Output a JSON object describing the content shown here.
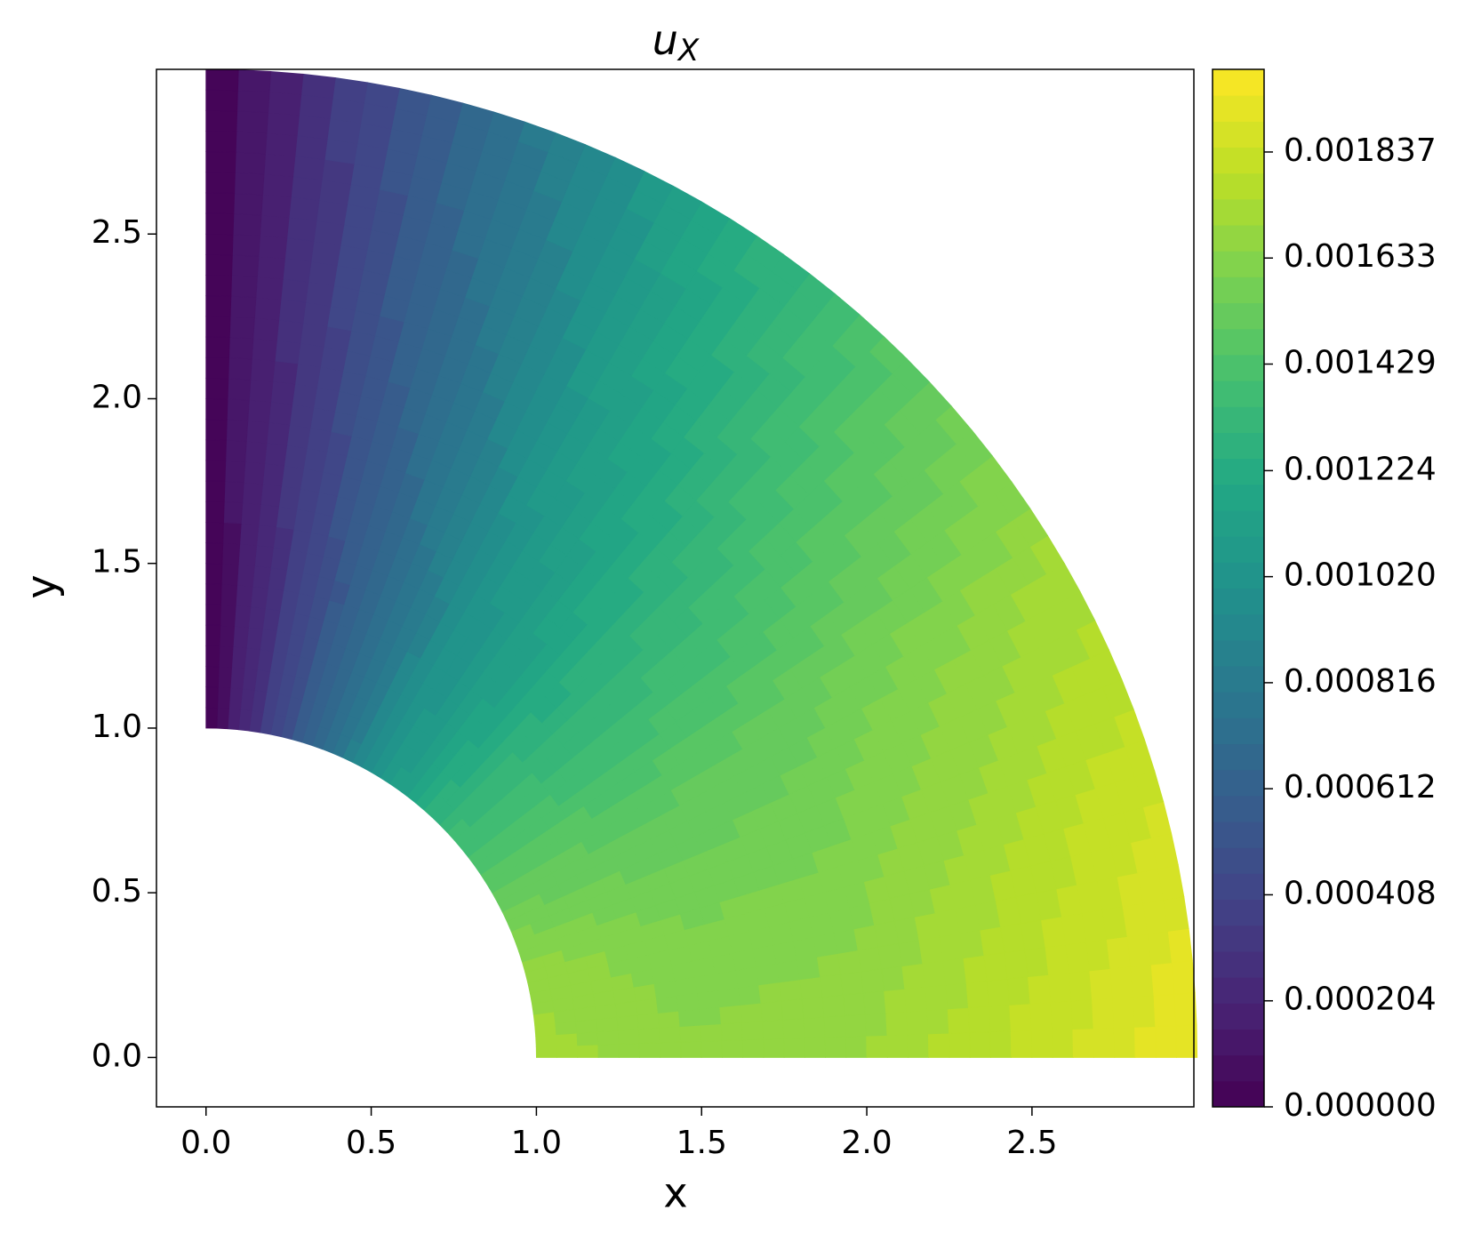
{
  "chart_data": {
    "type": "contour",
    "title": [
      "u",
      "X"
    ],
    "x_label": "x",
    "y_label": "y",
    "xlim": [
      -0.15,
      2.99
    ],
    "ylim": [
      -0.15,
      3.0
    ],
    "xticks": [
      {
        "value": 0,
        "label": "0.0"
      },
      0.5,
      {
        "value": 1,
        "label": "1.0"
      },
      1.5,
      {
        "value": 2,
        "label": "2.0"
      },
      2.5
    ],
    "yticks": [
      {
        "value": 0,
        "label": "0.0"
      },
      0.5,
      {
        "value": 1,
        "label": "1.0"
      },
      1.5,
      {
        "value": 2,
        "label": "2.0"
      },
      2.5
    ],
    "colormap": "viridis",
    "levels": 40,
    "clim": [
      0,
      0.001996
    ],
    "cticks": [
      {
        "value": 0,
        "label": "0.000000"
      },
      {
        "value": 0.000204,
        "label": "0.000204"
      },
      {
        "value": 0.000408,
        "label": "0.000408"
      },
      {
        "value": 0.000612,
        "label": "0.000612"
      },
      {
        "value": 0.000816,
        "label": "0.000816"
      },
      {
        "value": 0.00102,
        "label": "0.001020"
      },
      {
        "value": 0.001224,
        "label": "0.001224"
      },
      {
        "value": 0.001429,
        "label": "0.001429"
      },
      {
        "value": 0.001633,
        "label": "0.001633"
      },
      {
        "value": 0.001837,
        "label": "0.001837"
      }
    ],
    "r": [
      1,
      1.5,
      2,
      2.5,
      3
    ],
    "theta": [
      0,
      15,
      30,
      45,
      60,
      75,
      90
    ],
    "values": [
      [
        0.00172,
        0.00166,
        0.0017,
        0.00182,
        0.00195
      ],
      [
        0.00168,
        0.0016,
        0.00162,
        0.00174,
        0.00186
      ],
      [
        0.0015,
        0.00148,
        0.00152,
        0.00162,
        0.00172
      ],
      [
        0.00132,
        0.00126,
        0.0013,
        0.0014,
        0.00148
      ],
      [
        0.001,
        0.00098,
        0.00104,
        0.0011,
        0.00116
      ],
      [
        0.00052,
        0.00052,
        0.00056,
        0.0006,
        0.00064
      ],
      [
        0,
        0,
        0,
        0,
        0
      ]
    ]
  }
}
